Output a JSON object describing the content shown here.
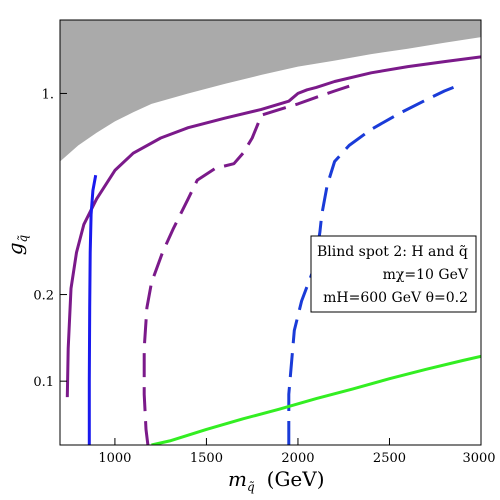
{
  "chart_data": {
    "type": "line",
    "title": "",
    "xlabel_main": "m",
    "xlabel_sub": "q̃",
    "xlabel_unit": "(GeV)",
    "ylabel_main": "g",
    "ylabel_sub": "q̃",
    "xlim": [
      700,
      3000
    ],
    "ylim": [
      0.06,
      1.8
    ],
    "yscale": "log",
    "x_ticks": [
      1000,
      1500,
      2000,
      2500,
      3000
    ],
    "y_ticks": [
      0.1,
      0.2,
      1.0
    ],
    "y_tick_labels": [
      "0.1",
      "0.2",
      "1."
    ],
    "legend": {
      "line1": "Blind spot 2: H and q̃",
      "line2": "mχ=10 GeV",
      "line3": "mH=600 GeV θ=0.2"
    },
    "excluded_region": {
      "color": "#aaaaaa",
      "boundary": [
        [
          700,
          0.58
        ],
        [
          800,
          0.66
        ],
        [
          900,
          0.73
        ],
        [
          1000,
          0.8
        ],
        [
          1100,
          0.86
        ],
        [
          1200,
          0.92
        ],
        [
          1400,
          1.0
        ],
        [
          1600,
          1.08
        ],
        [
          1800,
          1.16
        ],
        [
          2000,
          1.24
        ],
        [
          2200,
          1.3
        ],
        [
          2400,
          1.37
        ],
        [
          2600,
          1.43
        ],
        [
          2800,
          1.5
        ],
        [
          3000,
          1.57
        ]
      ]
    },
    "series": [
      {
        "color": "#7b1a8a",
        "dash": "solid",
        "points": [
          [
            740,
            0.088
          ],
          [
            745,
            0.13
          ],
          [
            760,
            0.21
          ],
          [
            790,
            0.28
          ],
          [
            830,
            0.35
          ],
          [
            900,
            0.43
          ],
          [
            1000,
            0.54
          ],
          [
            1100,
            0.62
          ],
          [
            1250,
            0.7
          ],
          [
            1400,
            0.76
          ],
          [
            1600,
            0.82
          ],
          [
            1800,
            0.88
          ],
          [
            1950,
            0.94
          ],
          [
            2000,
            1.0
          ],
          [
            2050,
            1.03
          ],
          [
            2100,
            1.05
          ],
          [
            2200,
            1.1
          ],
          [
            2400,
            1.18
          ],
          [
            2600,
            1.24
          ],
          [
            2800,
            1.29
          ],
          [
            3000,
            1.34
          ]
        ]
      },
      {
        "color": "#7b1a8a",
        "dash": "dashed",
        "points": [
          [
            1180,
            0.06
          ],
          [
            1170,
            0.068
          ],
          [
            1160,
            0.09
          ],
          [
            1160,
            0.13
          ],
          [
            1175,
            0.18
          ],
          [
            1200,
            0.22
          ],
          [
            1260,
            0.28
          ],
          [
            1320,
            0.34
          ],
          [
            1400,
            0.43
          ],
          [
            1450,
            0.5
          ],
          [
            1550,
            0.55
          ],
          [
            1650,
            0.57
          ],
          [
            1700,
            0.62
          ],
          [
            1750,
            0.7
          ],
          [
            1780,
            0.78
          ],
          [
            1800,
            0.84
          ],
          [
            1900,
            0.88
          ],
          [
            2000,
            0.92
          ],
          [
            2100,
            0.97
          ],
          [
            2200,
            1.02
          ],
          [
            2280,
            1.06
          ]
        ]
      },
      {
        "color": "#1a1aee",
        "dash": "solid",
        "points": [
          [
            860,
            0.06
          ],
          [
            860,
            0.1
          ],
          [
            862,
            0.18
          ],
          [
            865,
            0.28
          ],
          [
            870,
            0.38
          ],
          [
            880,
            0.46
          ],
          [
            895,
            0.52
          ]
        ]
      },
      {
        "color": "#1a3bd8",
        "dash": "dashed",
        "points": [
          [
            1950,
            0.06
          ],
          [
            1950,
            0.09
          ],
          [
            1980,
            0.15
          ],
          [
            2020,
            0.19
          ],
          [
            2080,
            0.24
          ],
          [
            2110,
            0.3
          ],
          [
            2120,
            0.33
          ],
          [
            2130,
            0.38
          ],
          [
            2160,
            0.48
          ],
          [
            2200,
            0.58
          ],
          [
            2280,
            0.66
          ],
          [
            2400,
            0.75
          ],
          [
            2550,
            0.85
          ],
          [
            2700,
            0.95
          ],
          [
            2800,
            1.02
          ],
          [
            2850,
            1.05
          ]
        ]
      },
      {
        "color": "#33ee22",
        "dash": "solid",
        "points": [
          [
            1200,
            0.06
          ],
          [
            1300,
            0.062
          ],
          [
            1500,
            0.068
          ],
          [
            1700,
            0.074
          ],
          [
            1900,
            0.08
          ],
          [
            2100,
            0.087
          ],
          [
            2300,
            0.094
          ],
          [
            2500,
            0.102
          ],
          [
            2700,
            0.11
          ],
          [
            2900,
            0.118
          ],
          [
            3000,
            0.122
          ]
        ]
      }
    ]
  }
}
